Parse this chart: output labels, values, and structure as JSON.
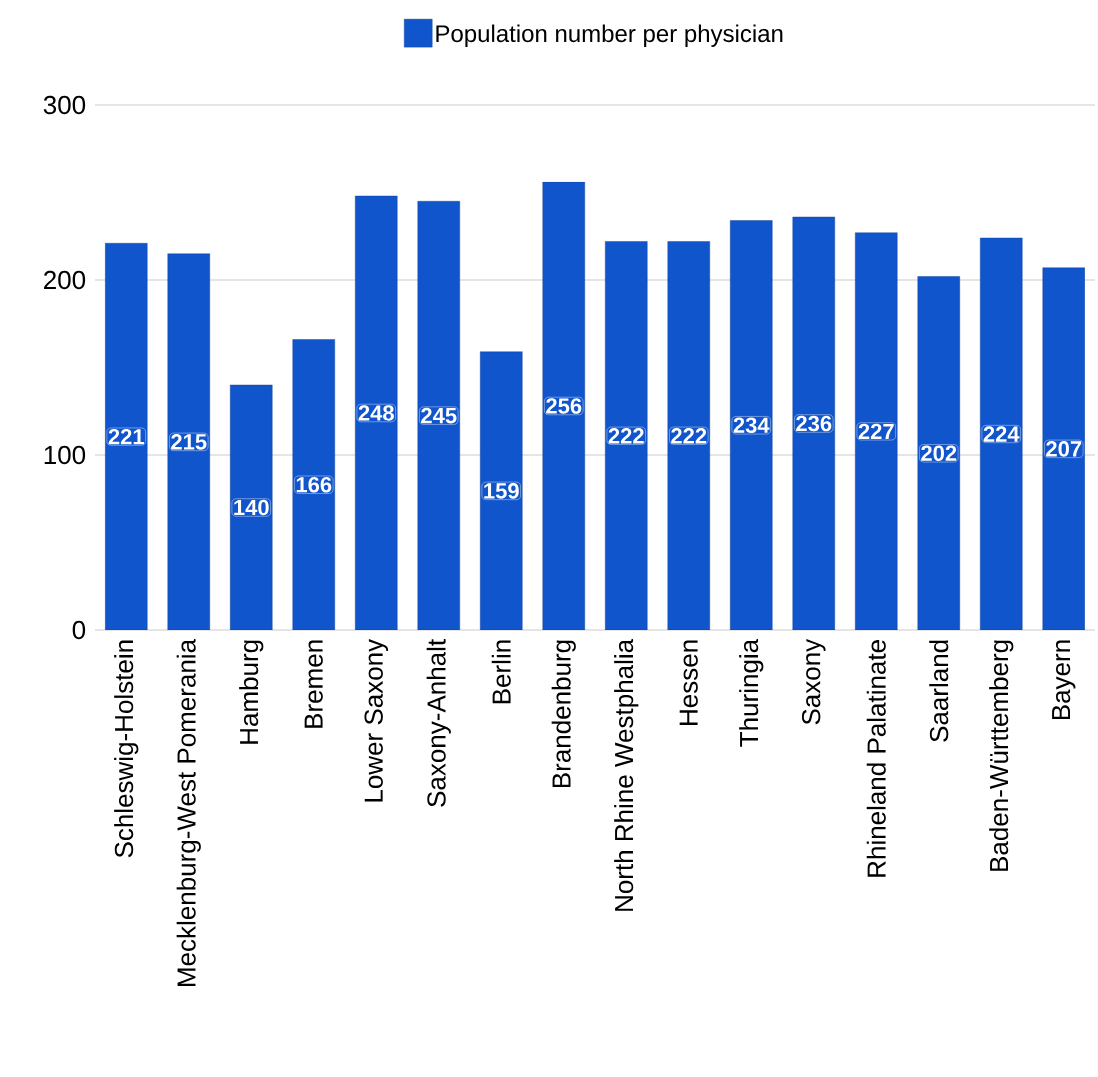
{
  "chart_data": {
    "type": "bar",
    "categories": [
      "Schleswig-Holstein",
      "Mecklenburg-West Pomerania",
      "Hamburg",
      "Bremen",
      "Lower Saxony",
      "Saxony-Anhalt",
      "Berlin",
      "Brandenburg",
      "North Rhine Westphalia",
      "Hessen",
      "Thuringia",
      "Saxony",
      "Rhineland Palatinate",
      "Saarland",
      "Baden-Württemberg",
      "Bayern"
    ],
    "series": [
      {
        "name": "Population number per physician",
        "color": "#1155cc",
        "values": [
          221,
          215,
          140,
          166,
          248,
          245,
          159,
          256,
          222,
          222,
          234,
          236,
          227,
          202,
          224,
          207
        ]
      }
    ],
    "ylim": [
      0,
      300
    ],
    "yticks": [
      0,
      100,
      200,
      300
    ],
    "grid": "y",
    "legend": "top",
    "data_labels": true
  }
}
